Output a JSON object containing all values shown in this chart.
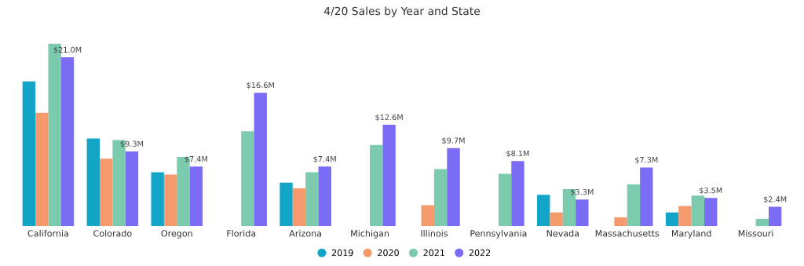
{
  "chart_data": {
    "type": "bar",
    "title": "4/20 Sales by Year and State",
    "categories": [
      "California",
      "Colorado",
      "Oregon",
      "Florida",
      "Arizona",
      "Michigan",
      "Illinois",
      "Pennsylvania",
      "Nevada",
      "Massachusetts",
      "Maryland",
      "Missouri"
    ],
    "series": [
      {
        "name": "2019",
        "color": "#12a5c8",
        "values": [
          18.0,
          10.9,
          6.7,
          null,
          5.4,
          null,
          null,
          null,
          3.9,
          null,
          1.7,
          null
        ]
      },
      {
        "name": "2020",
        "color": "#f59a6c",
        "values": [
          14.1,
          8.4,
          6.4,
          null,
          4.7,
          null,
          2.6,
          null,
          1.7,
          1.1,
          2.5,
          null
        ]
      },
      {
        "name": "2021",
        "color": "#7dcbae",
        "values": [
          22.7,
          10.7,
          8.6,
          11.8,
          6.7,
          10.1,
          7.1,
          6.5,
          4.6,
          5.2,
          3.8,
          0.9
        ]
      },
      {
        "name": "2022",
        "color": "#7b6cf6",
        "values": [
          21.0,
          9.3,
          7.4,
          16.6,
          7.4,
          12.6,
          9.7,
          8.1,
          3.3,
          7.3,
          3.5,
          2.4
        ],
        "value_labels": [
          "$21.0M",
          "$9.3M",
          "$7.4M",
          "$16.6M",
          "$7.4M",
          "$12.6M",
          "$9.7M",
          "$8.1M",
          "$3.3M",
          "$7.3M",
          "$3.5M",
          "$2.4M"
        ]
      }
    ],
    "legend": "bottom",
    "marker": "circle"
  }
}
